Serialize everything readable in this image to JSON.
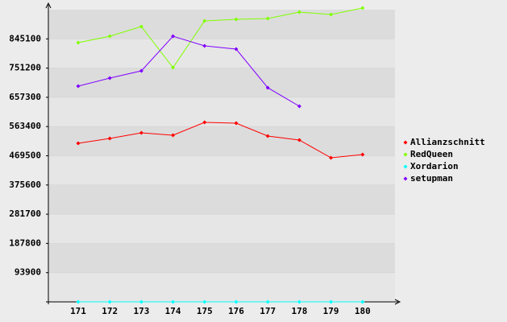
{
  "chart_data": {
    "type": "line",
    "categories": [
      "171",
      "172",
      "173",
      "174",
      "175",
      "176",
      "177",
      "178",
      "179",
      "180"
    ],
    "series": [
      {
        "name": "Allianzschnitt",
        "color": "#ff0000",
        "values": [
          509600,
          525100,
          543200,
          535500,
          576900,
          574300,
          532900,
          520000,
          463000,
          473400
        ]
      },
      {
        "name": "RedQueen",
        "color": "#80ff00",
        "values": [
          832900,
          853600,
          884700,
          752700,
          902800,
          908000,
          910500,
          931200,
          923500,
          944200
        ]
      },
      {
        "name": "Xordarion",
        "color": "#00ffff",
        "values": [
          0,
          0,
          0,
          0,
          0,
          0,
          0,
          0,
          0,
          0
        ]
      },
      {
        "name": "setupman",
        "color": "#8000ff",
        "values": [
          693300,
          719100,
          742400,
          853600,
          822600,
          812200,
          688100,
          628600,
          null,
          null
        ]
      }
    ],
    "ylim": [
      0,
      939000
    ],
    "yticks": [
      93900,
      187800,
      281700,
      375600,
      469500,
      563400,
      657300,
      751200,
      845100
    ],
    "grid": true
  }
}
